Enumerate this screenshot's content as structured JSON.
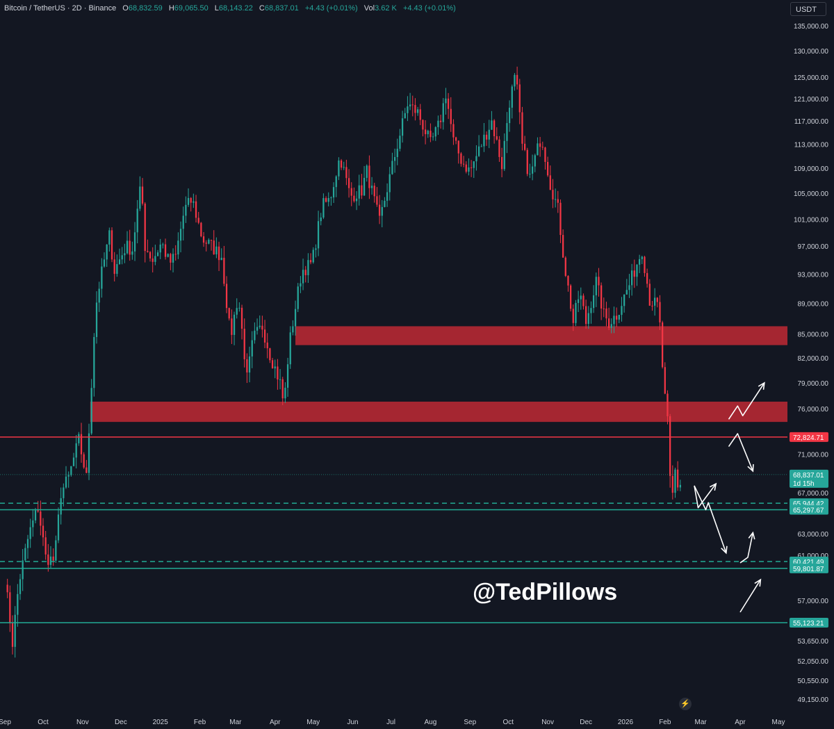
{
  "header": {
    "symbol": "Bitcoin / TetherUS · 2D · Binance",
    "o_label": "O",
    "o": "68,832.59",
    "h_label": "H",
    "h": "69,065.50",
    "l_label": "L",
    "l": "68,143.22",
    "c_label": "C",
    "c": "68,837.01",
    "change": "+4.43 (+0.01%)",
    "vol_label": "Vol",
    "vol": "3.62 K",
    "vol_change": "+4.43 (+0.01%)"
  },
  "currency": "USDT",
  "watermark": "@TedPillows",
  "colors": {
    "background": "#131722",
    "up": "#26a69a",
    "down": "#f23645",
    "zone": "#b22833",
    "teal_line": "#22ab94",
    "resistance_line": "#f23645",
    "axis_text": "#d1d4dc",
    "arrow": "#ffffff"
  },
  "chart_data": {
    "type": "candlestick",
    "title": "Bitcoin / TetherUS · 2D · Binance",
    "xlabel": "",
    "ylabel": "",
    "ylim": [
      47500,
      138500
    ],
    "scale": "log",
    "grid": false,
    "x_ticks": [
      "Sep",
      "Oct",
      "Nov",
      "Dec",
      "2025",
      "Feb",
      "Mar",
      "Apr",
      "May",
      "Jun",
      "Jul",
      "Aug",
      "Sep",
      "Oct",
      "Nov",
      "Dec",
      "2026",
      "Feb",
      "Mar",
      "Apr",
      "May"
    ],
    "y_ticks": [
      "135,000.00",
      "130,000.00",
      "125,000.00",
      "121,000.00",
      "117,000.00",
      "113,000.00",
      "109,000.00",
      "105,000.00",
      "101,000.00",
      "97,000.00",
      "93,000.00",
      "89,000.00",
      "85,000.00",
      "82,000.00",
      "79,000.00",
      "76,000.00",
      "71,000.00",
      "67,000.00",
      "63,000.00",
      "61,000.00",
      "57,000.00",
      "53,650.00",
      "52,050.00",
      "50,550.00",
      "49,150.00"
    ],
    "y_tick_values": [
      135000,
      130000,
      125000,
      121000,
      117000,
      113000,
      109000,
      105000,
      101000,
      97000,
      93000,
      89000,
      85000,
      82000,
      79000,
      76000,
      71000,
      67000,
      63000,
      61000,
      57000,
      53650,
      52050,
      50550,
      49150
    ],
    "series": [
      {
        "close_path": [
          [
            "2024-09-01",
            59000
          ],
          [
            "2024-09-07",
            53500
          ],
          [
            "2024-09-12",
            58500
          ],
          [
            "2024-09-20",
            63000
          ],
          [
            "2024-09-27",
            65500
          ],
          [
            "2024-10-03",
            60800
          ],
          [
            "2024-10-10",
            60500
          ],
          [
            "2024-10-15",
            67000
          ],
          [
            "2024-10-21",
            68500
          ],
          [
            "2024-10-29",
            72500
          ],
          [
            "2024-11-04",
            68500
          ],
          [
            "2024-11-07",
            76000
          ],
          [
            "2024-11-11",
            88000
          ],
          [
            "2024-11-13",
            90500
          ],
          [
            "2024-11-22",
            98500
          ],
          [
            "2024-11-26",
            93500
          ],
          [
            "2024-12-05",
            97000
          ],
          [
            "2024-12-10",
            96500
          ],
          [
            "2024-12-17",
            106500
          ],
          [
            "2024-12-20",
            97000
          ],
          [
            "2024-12-26",
            95000
          ],
          [
            "2025-01-02",
            97500
          ],
          [
            "2025-01-08",
            94500
          ],
          [
            "2025-01-13",
            95500
          ],
          [
            "2025-01-20",
            102500
          ],
          [
            "2025-01-26",
            104000
          ],
          [
            "2025-02-03",
            98000
          ],
          [
            "2025-02-10",
            97000
          ],
          [
            "2025-02-18",
            95500
          ],
          [
            "2025-02-25",
            84500
          ],
          [
            "2025-03-03",
            90000
          ],
          [
            "2025-03-10",
            79500
          ],
          [
            "2025-03-15",
            84500
          ],
          [
            "2025-03-22",
            86000
          ],
          [
            "2025-03-28",
            82500
          ],
          [
            "2025-04-05",
            79000
          ],
          [
            "2025-04-08",
            76300
          ],
          [
            "2025-04-12",
            83500
          ],
          [
            "2025-04-22",
            93500
          ],
          [
            "2025-04-30",
            94500
          ],
          [
            "2025-05-08",
            103000
          ],
          [
            "2025-05-14",
            104000
          ],
          [
            "2025-05-22",
            111000
          ],
          [
            "2025-05-30",
            104500
          ],
          [
            "2025-06-08",
            105500
          ],
          [
            "2025-06-12",
            108500
          ],
          [
            "2025-06-17",
            104500
          ],
          [
            "2025-06-22",
            100500
          ],
          [
            "2025-06-30",
            107500
          ],
          [
            "2025-07-10",
            116500
          ],
          [
            "2025-07-14",
            120000
          ],
          [
            "2025-07-22",
            118500
          ],
          [
            "2025-08-01",
            113000
          ],
          [
            "2025-08-08",
            116500
          ],
          [
            "2025-08-13",
            122000
          ],
          [
            "2025-08-19",
            113500
          ],
          [
            "2025-08-26",
            110000
          ],
          [
            "2025-09-01",
            108500
          ],
          [
            "2025-09-10",
            113000
          ],
          [
            "2025-09-18",
            117000
          ],
          [
            "2025-09-26",
            109500
          ],
          [
            "2025-10-02",
            120500
          ],
          [
            "2025-10-06",
            124500
          ],
          [
            "2025-10-09",
            121500
          ],
          [
            "2025-10-11",
            113500
          ],
          [
            "2025-10-18",
            107500
          ],
          [
            "2025-10-27",
            114500
          ],
          [
            "2025-11-03",
            106500
          ],
          [
            "2025-11-09",
            102500
          ],
          [
            "2025-11-14",
            94500
          ],
          [
            "2025-11-21",
            86500
          ],
          [
            "2025-11-26",
            90500
          ],
          [
            "2025-12-01",
            86500
          ],
          [
            "2025-12-09",
            92000
          ],
          [
            "2025-12-15",
            87500
          ],
          [
            "2025-12-19",
            86500
          ],
          [
            "2025-12-25",
            87500
          ],
          [
            "2026-01-04",
            91500
          ],
          [
            "2026-01-14",
            96500
          ],
          [
            "2026-01-20",
            89500
          ],
          [
            "2026-01-27",
            88500
          ],
          [
            "2026-01-31",
            78500
          ],
          [
            "2026-02-04",
            73000
          ],
          [
            "2026-02-06",
            63500
          ],
          [
            "2026-02-08",
            70000
          ],
          [
            "2026-02-12",
            67000
          ],
          [
            "2026-02-14",
            68837
          ]
        ]
      }
    ],
    "zones": [
      {
        "type": "resistance-zone",
        "low": 83600,
        "high": 86000,
        "from": "2025-04-17",
        "to": "right-edge"
      },
      {
        "type": "resistance-zone",
        "low": 74500,
        "high": 76800,
        "from": "2024-11-07",
        "to": "right-edge"
      }
    ],
    "levels": [
      {
        "value": 72824.71,
        "label": "72,824.71",
        "style": "solid",
        "color": "red"
      },
      {
        "value": 68837.01,
        "label": "68,837.01",
        "sublabel": "1d 15h",
        "style": "dotted",
        "color": "teal"
      },
      {
        "value": 65944.42,
        "label": "65,944.42",
        "style": "dashed",
        "color": "teal"
      },
      {
        "value": 65297.67,
        "label": "65,297.67",
        "style": "solid",
        "color": "teal"
      },
      {
        "value": 60421.49,
        "label": "60,421.49",
        "style": "dashed",
        "color": "teal"
      },
      {
        "value": 59801.87,
        "label": "59,801.87",
        "style": "solid",
        "color": "teal"
      },
      {
        "value": 55123.21,
        "label": "55,123.21",
        "style": "solid",
        "color": "teal"
      }
    ],
    "projection_arrows": [
      {
        "points": [
          [
            "2026-03-23",
            74800
          ],
          [
            "2026-03-30",
            76300
          ],
          [
            "2026-04-03",
            75200
          ],
          [
            "2026-04-20",
            79000
          ]
        ]
      },
      {
        "points": [
          [
            "2026-03-23",
            71800
          ],
          [
            "2026-03-30",
            73200
          ],
          [
            "2026-04-11",
            69200
          ]
        ]
      },
      {
        "points": [
          [
            "2026-02-24",
            67700
          ],
          [
            "2026-02-27",
            65500
          ],
          [
            "2026-03-13",
            67900
          ]
        ]
      },
      {
        "points": [
          [
            "2026-02-24",
            67700
          ],
          [
            "2026-03-05",
            65300
          ],
          [
            "2026-03-07",
            66000
          ],
          [
            "2026-03-21",
            61200
          ]
        ]
      },
      {
        "points": [
          [
            "2026-04-01",
            60300
          ],
          [
            "2026-04-07",
            60800
          ],
          [
            "2026-04-11",
            63100
          ]
        ]
      },
      {
        "points": [
          [
            "2026-04-01",
            56000
          ],
          [
            "2026-04-17",
            58800
          ]
        ]
      }
    ]
  }
}
